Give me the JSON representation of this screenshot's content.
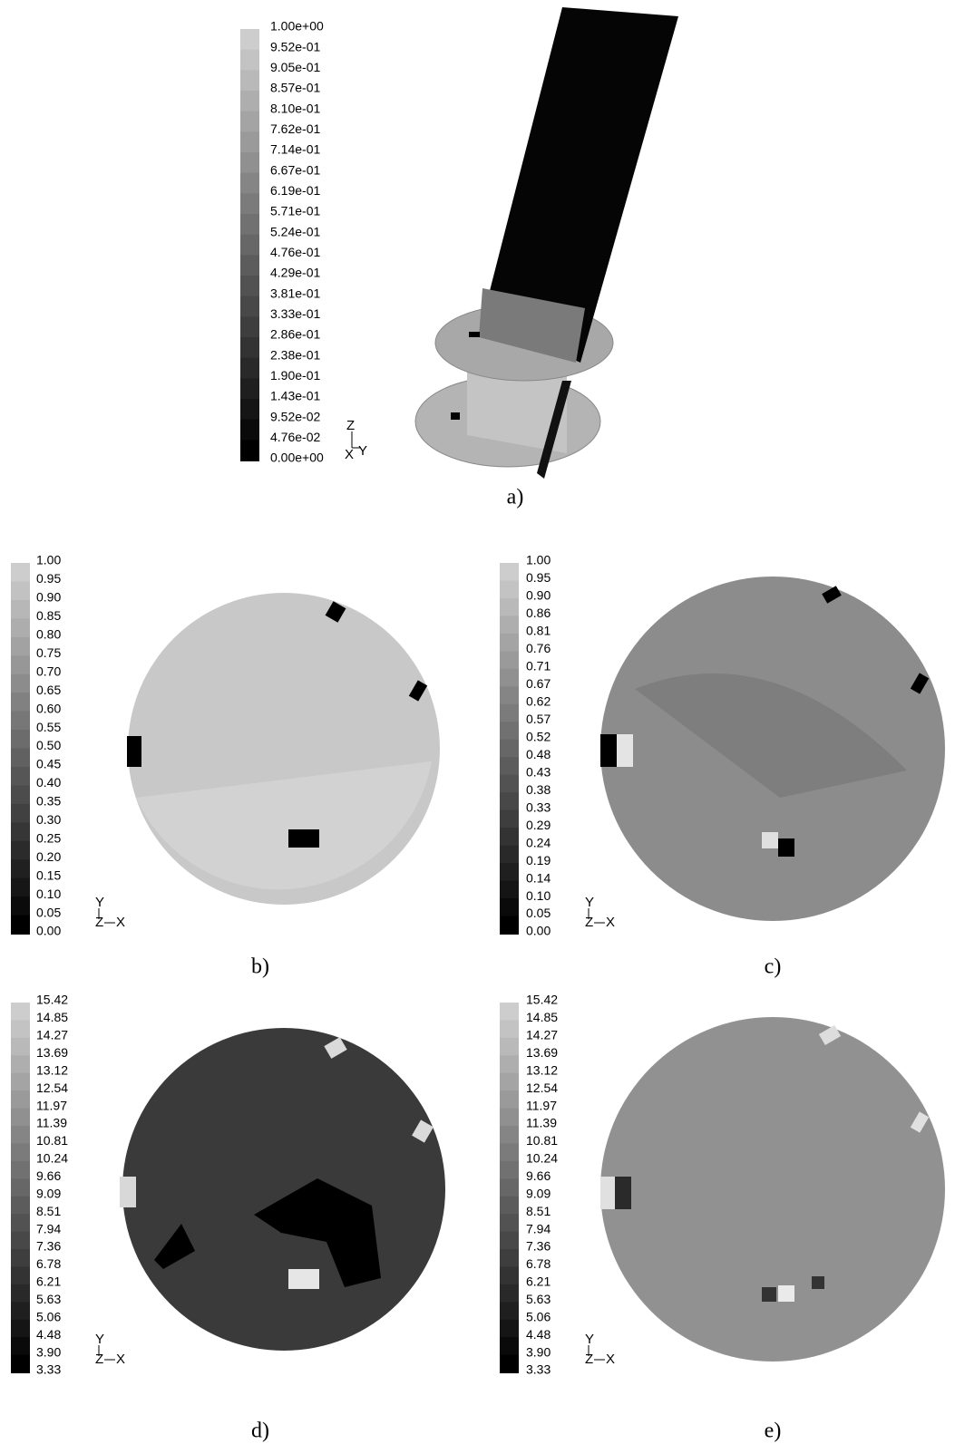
{
  "panels": [
    {
      "label": "a)",
      "legend": [
        "1.00e+00",
        "9.52e-01",
        "9.05e-01",
        "8.57e-01",
        "8.10e-01",
        "7.62e-01",
        "7.14e-01",
        "6.67e-01",
        "6.19e-01",
        "5.71e-01",
        "5.24e-01",
        "4.76e-01",
        "4.29e-01",
        "3.81e-01",
        "3.33e-01",
        "2.86e-01",
        "2.38e-01",
        "1.90e-01",
        "1.43e-01",
        "9.52e-02",
        "4.76e-02",
        "0.00e+00"
      ],
      "axes": [
        "Z",
        "X",
        "Y"
      ]
    },
    {
      "label": "b)",
      "legend": [
        "1.00",
        "0.95",
        "0.90",
        "0.85",
        "0.80",
        "0.75",
        "0.70",
        "0.65",
        "0.60",
        "0.55",
        "0.50",
        "0.45",
        "0.40",
        "0.35",
        "0.30",
        "0.25",
        "0.20",
        "0.15",
        "0.10",
        "0.05",
        "0.00"
      ],
      "axes": [
        "Y",
        "Z",
        "X"
      ]
    },
    {
      "label": "c)",
      "legend": [
        "1.00",
        "0.95",
        "0.90",
        "0.86",
        "0.81",
        "0.76",
        "0.71",
        "0.67",
        "0.62",
        "0.57",
        "0.52",
        "0.48",
        "0.43",
        "0.38",
        "0.33",
        "0.29",
        "0.24",
        "0.19",
        "0.14",
        "0.10",
        "0.05",
        "0.00"
      ],
      "axes": [
        "Y",
        "Z",
        "X"
      ]
    },
    {
      "label": "d)",
      "legend": [
        "15.42",
        "14.85",
        "14.27",
        "13.69",
        "13.12",
        "12.54",
        "11.97",
        "11.39",
        "10.81",
        "10.24",
        "9.66",
        "9.09",
        "8.51",
        "7.94",
        "7.36",
        "6.78",
        "6.21",
        "5.63",
        "5.06",
        "4.48",
        "3.90",
        "3.33"
      ],
      "axes": [
        "Y",
        "Z",
        "X"
      ]
    },
    {
      "label": "e)",
      "legend": [
        "15.42",
        "14.85",
        "14.27",
        "13.69",
        "13.12",
        "12.54",
        "11.97",
        "11.39",
        "10.81",
        "10.24",
        "9.66",
        "9.09",
        "8.51",
        "7.94",
        "7.36",
        "6.78",
        "6.21",
        "5.63",
        "5.06",
        "4.48",
        "3.90",
        "3.33"
      ],
      "axes": [
        "Y",
        "Z",
        "X"
      ]
    }
  ]
}
